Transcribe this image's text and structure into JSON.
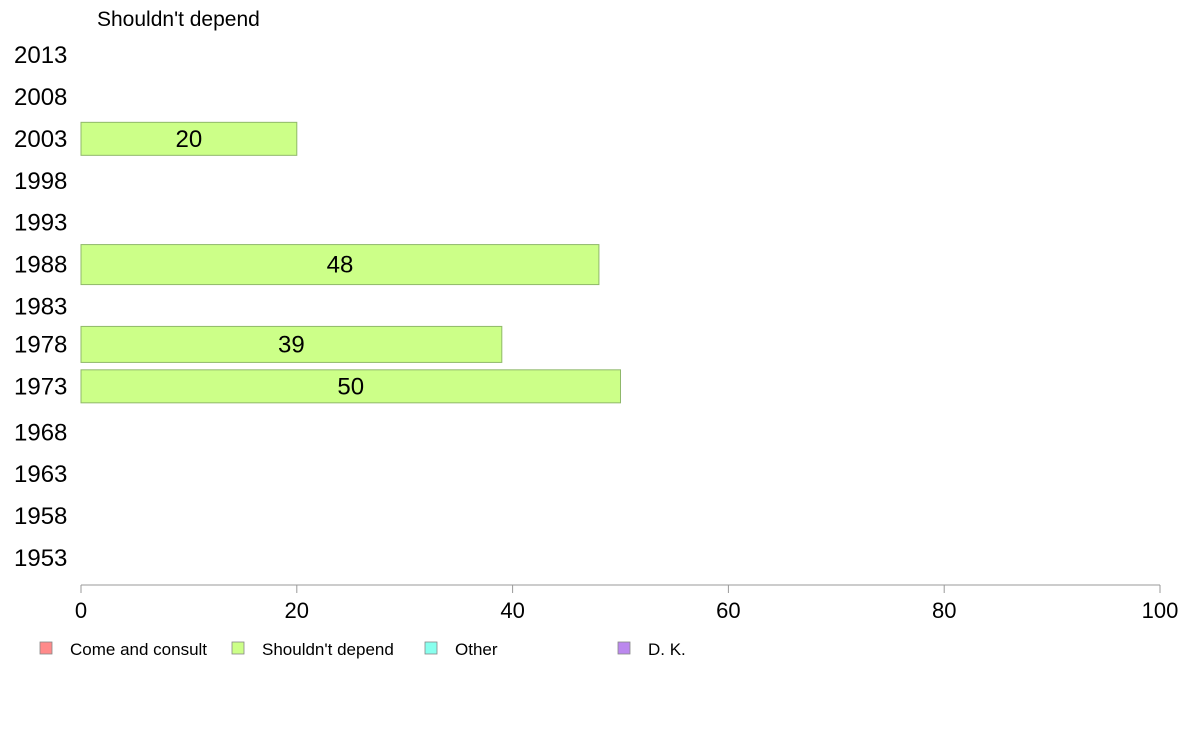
{
  "chart_data": {
    "type": "bar",
    "orientation": "horizontal",
    "panel_title": "Shouldn't depend",
    "categories": [
      "2013",
      "2008",
      "2003",
      "1998",
      "1993",
      "1988",
      "1983",
      "1978",
      "1973",
      "1968",
      "1963",
      "1958",
      "1953"
    ],
    "series": [
      {
        "name": "Shouldn't depend",
        "color": "#ccff88",
        "values": [
          null,
          null,
          20,
          null,
          null,
          48,
          null,
          39,
          50,
          null,
          null,
          null,
          null
        ]
      }
    ],
    "bar_value_labels": [
      "",
      "",
      "20",
      "",
      "",
      "48",
      "",
      "39",
      "50",
      "",
      "",
      "",
      ""
    ],
    "xlim": [
      0,
      100
    ],
    "xticks": [
      "0",
      "20",
      "40",
      "60",
      "80",
      "100"
    ],
    "xlabel": "",
    "ylabel": "",
    "grid": false,
    "legend_position": "bottom",
    "legend": [
      {
        "label": "Come and consult",
        "color": "#ff8a8a"
      },
      {
        "label": "Shouldn't depend",
        "color": "#ccff88"
      },
      {
        "label": "Other",
        "color": "#88ffee"
      },
      {
        "label": "D. K.",
        "color": "#bb88ee"
      }
    ]
  }
}
